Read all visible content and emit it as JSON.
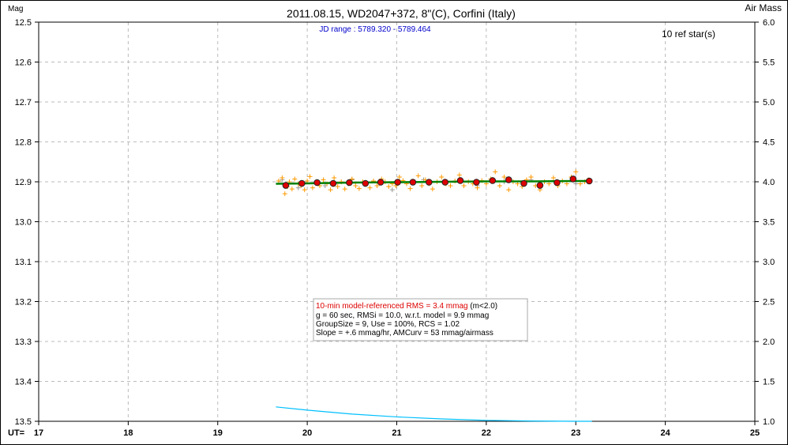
{
  "chart_data": {
    "type": "scatter",
    "title": "2011.08.15, WD2047+372, 8\"(C), Corfini (Italy)",
    "subtitle": "JD range : 5789.320 - 5789.464",
    "ylabel": "Mag",
    "y2label": "Air Mass",
    "xlabel": "UT=",
    "ref_stars": "10 ref star(s)",
    "xlim": [
      17,
      25
    ],
    "ylim": [
      12.5,
      13.5
    ],
    "y_inverted": true,
    "y2lim": [
      1.0,
      6.0
    ],
    "grid": true,
    "xticks": [
      "17",
      "18",
      "19",
      "20",
      "21",
      "22",
      "23",
      "24",
      "25"
    ],
    "yticks": [
      "12.5",
      "12.6",
      "12.7",
      "12.8",
      "12.9",
      "13.0",
      "13.1",
      "13.2",
      "13.3",
      "13.4",
      "13.5"
    ],
    "y2ticks": [
      "6.0",
      "5.5",
      "5.0",
      "4.5",
      "4.0",
      "3.5",
      "3.0",
      "2.5",
      "2.0",
      "1.5",
      "1.0"
    ],
    "stats_box": {
      "line1_red": "10-min model-referenced RMS = 3.4 mmag",
      "line1_black": " (m<2.0)",
      "line2": "g = 60 sec, RMSi = 10.0, w.r.t. model = 9.9 mmag",
      "line3": "GroupSize = 9, Use = 100%, RCS = 1.02",
      "line4": "Slope = +.6 mmag/hr, AMCurv = 53 mmag/airmass"
    },
    "colors": {
      "binned": "#dd0000",
      "raw": "#ff9900",
      "rejected": "#999999",
      "model": "#008000",
      "airmass": "#00c0ff",
      "subtitle": "#0000cc"
    },
    "series": [
      {
        "name": "binned",
        "x": [
          19.76,
          19.94,
          20.11,
          20.29,
          20.47,
          20.65,
          20.82,
          21.01,
          21.18,
          21.36,
          21.54,
          21.71,
          21.89,
          22.07,
          22.25,
          22.42,
          22.6,
          22.79,
          22.97,
          23.15
        ],
        "y": [
          12.909,
          12.904,
          12.902,
          12.904,
          12.902,
          12.904,
          12.901,
          12.901,
          12.901,
          12.901,
          12.901,
          12.897,
          12.901,
          12.897,
          12.895,
          12.904,
          12.909,
          12.902,
          12.893,
          12.898
        ]
      },
      {
        "name": "model",
        "x": [
          19.65,
          20.0,
          20.5,
          21.0,
          21.5,
          22.0,
          22.5,
          23.0,
          23.18
        ],
        "y": [
          12.905,
          12.904,
          12.902,
          12.901,
          12.9,
          12.899,
          12.899,
          12.898,
          12.898
        ]
      },
      {
        "name": "airmass",
        "x": [
          19.65,
          20.0,
          20.5,
          21.0,
          21.5,
          22.0,
          22.5,
          23.0,
          23.18
        ],
        "y": [
          1.18,
          1.14,
          1.09,
          1.055,
          1.03,
          1.012,
          1.004,
          1.0,
          1.0
        ]
      },
      {
        "name": "raw",
        "x": [
          19.68,
          19.72,
          19.75,
          19.78,
          19.8,
          19.83,
          19.86,
          19.9,
          19.93,
          19.97,
          20.0,
          20.03,
          20.06,
          20.1,
          20.14,
          20.18,
          20.22,
          20.26,
          20.3,
          20.34,
          20.38,
          20.42,
          20.46,
          20.5,
          20.54,
          20.58,
          20.62,
          20.66,
          20.7,
          20.74,
          20.78,
          20.83,
          20.87,
          20.91,
          20.95,
          20.99,
          21.03,
          21.07,
          21.11,
          21.15,
          21.2,
          21.24,
          21.28,
          21.32,
          21.36,
          21.4,
          21.45,
          21.5,
          21.55,
          21.6,
          21.65,
          21.7,
          21.75,
          21.8,
          21.85,
          21.9,
          21.95,
          22.0,
          22.05,
          22.1,
          22.15,
          22.2,
          22.25,
          22.3,
          22.35,
          22.4,
          22.45,
          22.5,
          22.55,
          22.6,
          22.65,
          22.7,
          22.75,
          22.8,
          22.85,
          22.9,
          22.95,
          23.0,
          23.05,
          23.1,
          23.14
        ],
        "y": [
          12.898,
          12.89,
          12.93,
          12.912,
          12.9,
          12.918,
          12.893,
          12.905,
          12.91,
          12.92,
          12.898,
          12.887,
          12.915,
          12.9,
          12.91,
          12.895,
          12.905,
          12.92,
          12.89,
          12.912,
          12.9,
          12.918,
          12.905,
          12.893,
          12.91,
          12.917,
          12.9,
          12.905,
          12.915,
          12.898,
          12.91,
          12.893,
          12.9,
          12.912,
          12.905,
          12.91,
          12.888,
          12.897,
          12.905,
          12.917,
          12.9,
          12.885,
          12.91,
          12.895,
          12.905,
          12.918,
          12.9,
          12.888,
          12.905,
          12.91,
          12.898,
          12.883,
          12.91,
          12.9,
          12.905,
          12.915,
          12.897,
          12.905,
          12.893,
          12.875,
          12.91,
          12.888,
          12.92,
          12.9,
          12.905,
          12.912,
          12.895,
          12.888,
          12.91,
          12.92,
          12.9,
          12.905,
          12.89,
          12.91,
          12.898,
          12.905,
          12.888,
          12.875,
          12.905,
          12.9,
          12.895
        ]
      },
      {
        "name": "rejected",
        "x": [
          19.72,
          19.9,
          20.2,
          20.5,
          20.95,
          21.3,
          21.9,
          22.2,
          22.5,
          22.65,
          23.0
        ],
        "y": [
          12.895,
          12.915,
          12.91,
          12.895,
          12.92,
          12.895,
          12.91,
          12.9,
          12.895,
          12.9,
          12.905
        ]
      }
    ]
  }
}
